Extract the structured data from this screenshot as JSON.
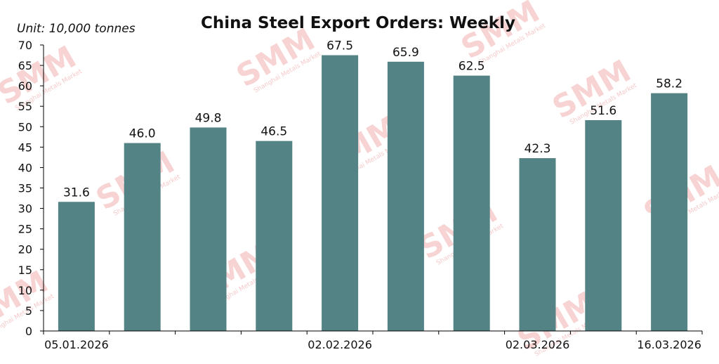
{
  "chart_data": {
    "type": "bar",
    "title": "China Steel Export Orders: Weekly",
    "unit_label": "Unit: 10,000 tonnes",
    "categories": [
      "05.01.2026",
      "",
      "",
      "",
      "02.02.2026",
      "",
      "",
      "02.03.2026",
      "",
      "16.03.2026"
    ],
    "values": [
      31.6,
      46.0,
      49.8,
      46.5,
      67.5,
      65.9,
      62.5,
      42.3,
      51.6,
      58.2
    ],
    "value_labels": [
      "31.6",
      "46.0",
      "49.8",
      "46.5",
      "67.5",
      "65.9",
      "62.5",
      "42.3",
      "51.6",
      "58.2"
    ],
    "ylim": [
      0,
      70
    ],
    "yticks": [
      "0",
      "5",
      "10",
      "15",
      "20",
      "25",
      "30",
      "35",
      "40",
      "45",
      "50",
      "55",
      "60",
      "65",
      "70"
    ],
    "grid": false,
    "bar_color": "#548386",
    "watermark": {
      "text": "SMM",
      "subtext": "Shanghai Metals Market",
      "color": "#e46464"
    }
  }
}
